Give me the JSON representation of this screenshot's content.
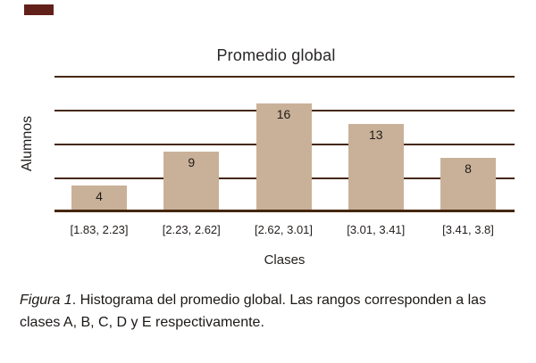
{
  "figure": {
    "title": "Promedio global",
    "xlabel": "Clases",
    "ylabel": "Alumnos",
    "caption": {
      "line1_italic": "Figura 1",
      "line1_rest": ". Histograma del promedio global. Las rangos corresponden a las",
      "line2": "clases A, B, C, D y E respectivamente."
    }
  },
  "chart_data": {
    "type": "bar",
    "title": "Promedio global",
    "xlabel": "Clases",
    "ylabel": "Alumnos",
    "categories": [
      "[1.83, 2.23]",
      "[2.23, 2.62]",
      "[2.62, 3.01]",
      "[3.01, 3.41]",
      "[3.41, 3.8]"
    ],
    "values": [
      4,
      9,
      16,
      13,
      8
    ],
    "ylim": [
      0,
      20
    ],
    "grid_step": 5,
    "grid": true,
    "legend": false,
    "bar_color": "#c9b199",
    "grid_color": "#45270e",
    "corner_mark_color": "#62201a"
  }
}
